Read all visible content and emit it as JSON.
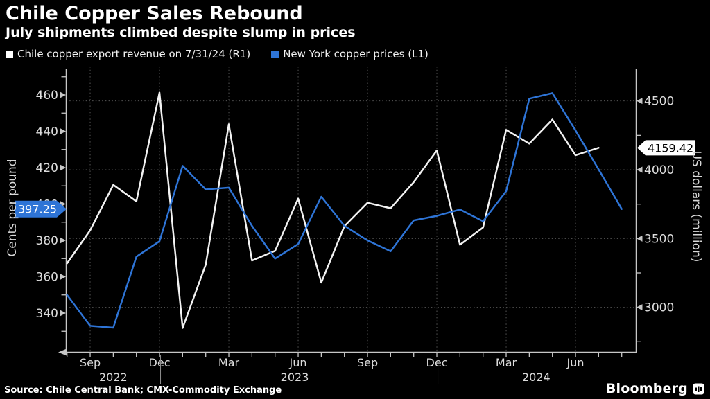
{
  "title": "Chile Copper Sales Rebound",
  "subtitle": "July shipments climbed despite slump in prices",
  "legend": [
    {
      "label": "Chile copper export revenue on 7/31/24 (R1)",
      "color": "#ffffff"
    },
    {
      "label": "New York copper prices (L1)",
      "color": "#2e74d6"
    }
  ],
  "left_axis": {
    "title": "Cents per pound",
    "ticks": [
      460,
      440,
      420,
      400,
      380,
      360,
      340
    ],
    "minor_step": 10,
    "minor_range": [
      330,
      470
    ],
    "badge": "397.25",
    "badge_color": "#2e74d6"
  },
  "right_axis": {
    "title": "US dollars (million)",
    "ticks": [
      4500,
      4000,
      3500,
      3000
    ],
    "minor_step": 250,
    "minor_range": [
      2750,
      4500
    ],
    "badge": "4159.42",
    "badge_color": "#ffffff"
  },
  "x_axis": {
    "months": [
      {
        "label": "Sep",
        "i": 1
      },
      {
        "label": "Dec",
        "i": 4
      },
      {
        "label": "Mar",
        "i": 7
      },
      {
        "label": "Jun",
        "i": 10
      },
      {
        "label": "Sep",
        "i": 13
      },
      {
        "label": "Dec",
        "i": 16
      },
      {
        "label": "Mar",
        "i": 19
      },
      {
        "label": "Jun",
        "i": 22
      }
    ],
    "years": [
      {
        "label": "2022",
        "i": 2.0
      },
      {
        "label": "2023",
        "i": 9.85
      },
      {
        "label": "2024",
        "i": 20.3
      }
    ],
    "separators_i": [
      4,
      16
    ]
  },
  "footer": {
    "source": "Source: Chile Central Bank; CMX-Commodity Exchange",
    "brand": "Bloomberg"
  },
  "chart_data": {
    "type": "line",
    "x_labels": [
      "Aug '22",
      "Sep '22",
      "Oct '22",
      "Nov '22",
      "Dec '22",
      "Jan '23",
      "Feb '23",
      "Mar '23",
      "Apr '23",
      "May '23",
      "Jun '23",
      "Jul '23",
      "Aug '23",
      "Sep '23",
      "Oct '23",
      "Nov '23",
      "Dec '23",
      "Jan '24",
      "Feb '24",
      "Mar '24",
      "Apr '24",
      "May '24",
      "Jun '24",
      "Jul '24",
      "Aug '24"
    ],
    "series": [
      {
        "name": "Chile copper export revenue on 7/31/24 (R1)",
        "axis": "right",
        "unit": "US dollars (million)",
        "color": "#f2f2f2",
        "last_label": "4159.42",
        "values": [
          3320,
          3560,
          3890,
          3770,
          4560,
          2850,
          3310,
          4330,
          3340,
          3410,
          3790,
          3180,
          3590,
          3760,
          3720,
          3910,
          4140,
          3455,
          3580,
          4290,
          4190,
          4365,
          4105,
          4159.42
        ]
      },
      {
        "name": "New York copper prices (L1)",
        "axis": "left",
        "unit": "Cents per pound",
        "color": "#2e74d6",
        "last_label": "397.25",
        "values": [
          350,
          333,
          332,
          371,
          379.5,
          421,
          408,
          409,
          388,
          370,
          378,
          404,
          388,
          380,
          374,
          391,
          393.5,
          397,
          390.5,
          407,
          458,
          461,
          440.5,
          419,
          397.25
        ]
      }
    ],
    "left_ylim": [
      318,
      472
    ],
    "right_ylim": [
      2675,
      4715
    ],
    "grid": "dotted, vertical at quarter months, horizontal at right-axis 500s",
    "legend_position": "top"
  }
}
